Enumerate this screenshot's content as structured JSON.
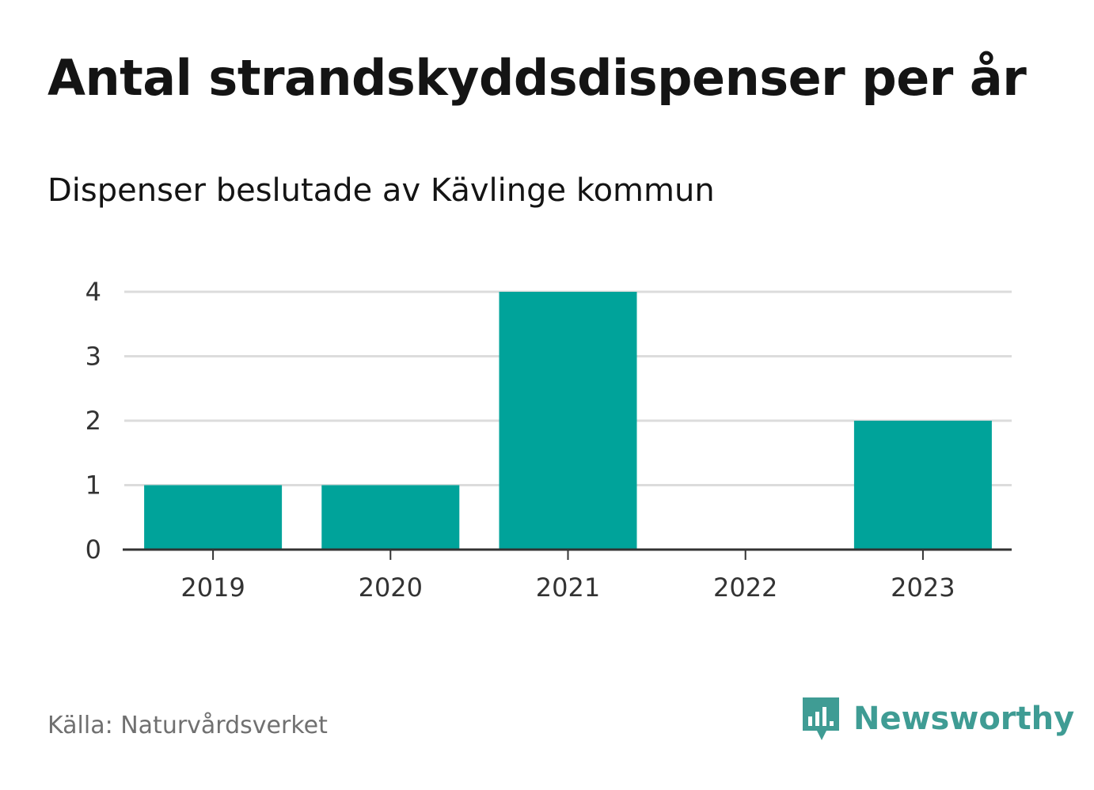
{
  "title": "Antal strandskyddsdispenser per år",
  "subtitle": "Dispenser beslutade av Kävlinge kommun",
  "source": "Källa: Naturvårdsverket",
  "brand": {
    "name": "Newsworthy",
    "icon": "newsworthy-logo-icon",
    "color": "#3f9c94"
  },
  "chart_data": {
    "type": "bar",
    "categories": [
      "2019",
      "2020",
      "2021",
      "2022",
      "2023"
    ],
    "values": [
      1,
      1,
      4,
      0,
      2
    ],
    "yticks": [
      "0",
      "1",
      "2",
      "3",
      "4"
    ],
    "ylim": [
      0,
      4
    ],
    "grid": true,
    "bar_color": "#00a39a",
    "title": "Antal strandskyddsdispenser per år",
    "xlabel": "",
    "ylabel": ""
  }
}
